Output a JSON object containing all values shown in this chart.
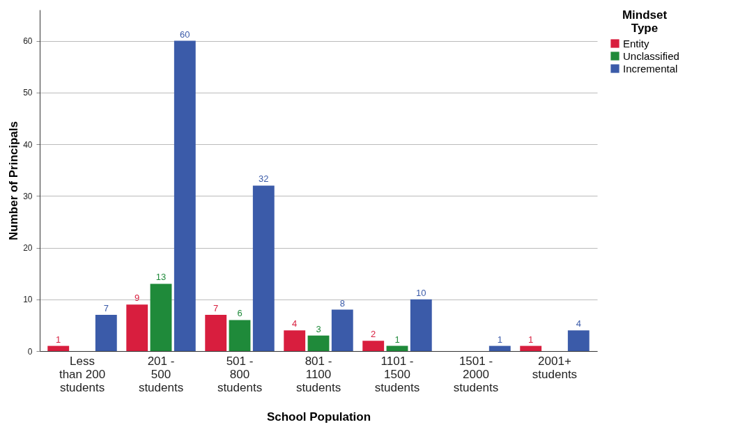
{
  "chart_data": {
    "type": "bar",
    "xlabel": "School Population",
    "ylabel": "Number of Principals",
    "legend_title": "Mindset Type",
    "categories": [
      "Less than 200 students",
      "201 - 500 students",
      "501 - 800 students",
      "801 - 1100 students",
      "1101 - 1500 students",
      "1501 - 2000 students",
      "2001+ students"
    ],
    "series": [
      {
        "name": "Entity",
        "color": "#d81e3e",
        "values": [
          1,
          9,
          7,
          4,
          2,
          null,
          1
        ]
      },
      {
        "name": "Unclassified",
        "color": "#1f8a3a",
        "values": [
          null,
          13,
          6,
          3,
          1,
          null,
          null
        ]
      },
      {
        "name": "Incremental",
        "color": "#3b5ba9",
        "values": [
          7,
          60,
          32,
          8,
          10,
          1,
          4
        ]
      }
    ],
    "ylim": [
      0,
      66
    ],
    "yticks": [
      0,
      10,
      20,
      30,
      40,
      50,
      60
    ],
    "grid": "y",
    "legend": "top right",
    "data_labels": true
  }
}
